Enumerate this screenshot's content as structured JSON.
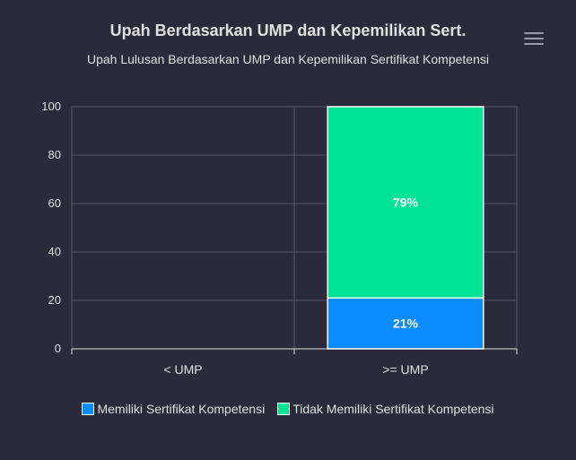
{
  "chart_data": {
    "type": "bar",
    "stacked": true,
    "title": "Upah Berdasarkan UMP dan Kepemilikan Sert.",
    "subtitle": "Upah Lulusan Berdasarkan UMP dan Kepemilikan Sertifikat Kompetensi",
    "categories": [
      "< UMP",
      ">= UMP"
    ],
    "series": [
      {
        "name": "Memiliki Sertifikat Kompetensi",
        "values": [
          0,
          21
        ],
        "labels": [
          "",
          "21%"
        ],
        "color": "#0a8cff"
      },
      {
        "name": "Tidak Memiliki Sertifikat Kompetensi",
        "values": [
          0,
          79
        ],
        "labels": [
          "",
          "79%"
        ],
        "color": "#00e396"
      }
    ],
    "ylim": [
      0,
      100
    ],
    "yticks": [
      "0",
      "20",
      "40",
      "60",
      "80",
      "100"
    ],
    "grid": true,
    "legend": "bottom-center"
  },
  "colors": {
    "background": "#2a2a3a",
    "grid": "#555566",
    "text": "#e0e0e0"
  },
  "menu_icon": "hamburger-menu-icon"
}
